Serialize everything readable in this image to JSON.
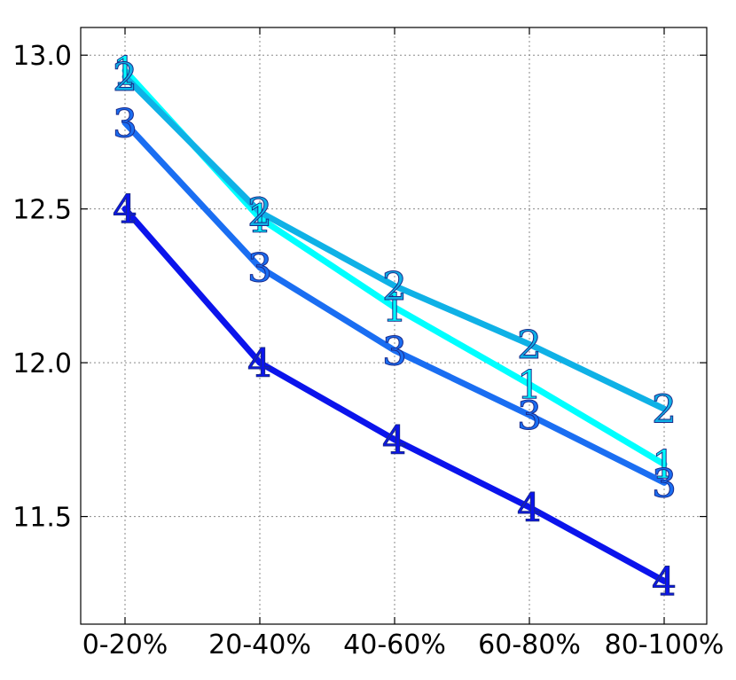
{
  "chart_data": {
    "type": "line",
    "categories": [
      "0-20%",
      "20-40%",
      "40-60%",
      "60-80%",
      "80-100%"
    ],
    "ylim": [
      11.15,
      13.09
    ],
    "yticks": [
      11.5,
      12.0,
      12.5,
      13.0
    ],
    "ytick_labels": [
      "11.5",
      "12.0",
      "12.5",
      "13.0"
    ],
    "grid": true,
    "series": [
      {
        "name": "1",
        "color": "#00ffff",
        "values": [
          12.95,
          12.47,
          12.18,
          11.93,
          11.67
        ]
      },
      {
        "name": "2",
        "color": "#0fb1e6",
        "values": [
          12.93,
          12.49,
          12.25,
          12.06,
          11.85
        ]
      },
      {
        "name": "3",
        "color": "#1a6ef2",
        "values": [
          12.78,
          12.31,
          12.04,
          11.83,
          11.61
        ]
      },
      {
        "name": "4",
        "color": "#0b14ec",
        "values": [
          12.5,
          12.0,
          11.75,
          11.53,
          11.29
        ]
      }
    ]
  }
}
